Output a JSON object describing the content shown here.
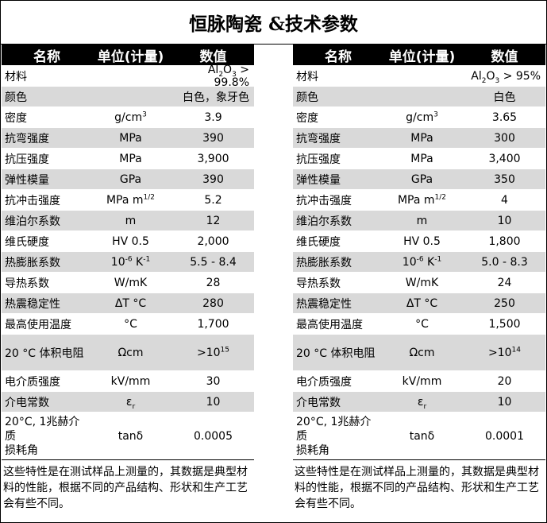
{
  "title": "恒脉陶瓷 &技术参数",
  "headers": {
    "name": "名称",
    "unit": "单位(计量)",
    "value": "数值"
  },
  "left": {
    "rows": [
      {
        "name": "材料",
        "unit": "",
        "value_pre": "Al",
        "value_sub": "2",
        "value_mid": "O",
        "value_sub2": "3",
        "value_post": " > 99.8%"
      },
      {
        "name": "颜色",
        "unit": "",
        "value": "白色，象牙色"
      },
      {
        "name": "密度",
        "unit": "g/cm",
        "unit_sup": "3",
        "value": "3.9"
      },
      {
        "name": "抗弯强度",
        "unit": "MPa",
        "value": "390"
      },
      {
        "name": "抗压强度",
        "unit": "MPa",
        "value": "3,900"
      },
      {
        "name": "弹性模量",
        "unit": "GPa",
        "value": "390"
      },
      {
        "name": "抗冲击强度",
        "unit": "MPa m",
        "unit_sup": "1/2",
        "value": "5.2"
      },
      {
        "name": "维泊尔系数",
        "unit": "m",
        "value": "12"
      },
      {
        "name": "维氏硬度",
        "unit": "HV 0.5",
        "value": "2,000"
      },
      {
        "name": "热膨胀系数",
        "unit_a": "10",
        "unit_a_sup": "-6",
        "unit_b": " K",
        "unit_b_sup": "-1",
        "value": "5.5 - 8.4"
      },
      {
        "name": "导热系数",
        "unit": "W/mK",
        "value": "28"
      },
      {
        "name": "热震稳定性",
        "unit": "ΔT °C",
        "value": "280"
      },
      {
        "name": "最高使用温度",
        "unit": "°C",
        "value": "1,700"
      },
      {
        "name": "20 °C 体积电阻",
        "unit": "Ωcm",
        "value": ">10",
        "value_sup": "15"
      },
      {
        "name": "电介质强度",
        "unit": "kV/mm",
        "value": "30"
      },
      {
        "name": "介电常数",
        "unit": "ε",
        "unit_sub": "r",
        "value": "10"
      },
      {
        "name_line1": "20°C, 1兆赫介质",
        "name_line2": "损耗角",
        "unit": "tanδ",
        "value": "0.0005"
      }
    ],
    "note": "这些特性是在测试样品上测量的，其数据是典型材料的性能，根据不同的产品结构、形状和生产工艺会有些不同。"
  },
  "right": {
    "rows": [
      {
        "name": "材料",
        "unit": "",
        "value_pre": "Al",
        "value_sub": "2",
        "value_mid": "O",
        "value_sub2": "3",
        "value_post": " > 95%"
      },
      {
        "name": "颜色",
        "unit": "",
        "value": "白色"
      },
      {
        "name": "密度",
        "unit": "g/cm",
        "unit_sup": "3",
        "value": "3.65"
      },
      {
        "name": "抗弯强度",
        "unit": "MPa",
        "value": "300"
      },
      {
        "name": "抗压强度",
        "unit": "MPa",
        "value": "3,400"
      },
      {
        "name": "弹性模量",
        "unit": "GPa",
        "value": "350"
      },
      {
        "name": "抗冲击强度",
        "unit": "MPa m",
        "unit_sup": "1/2",
        "value": "4"
      },
      {
        "name": "维泊尔系数",
        "unit": "m",
        "value": "10"
      },
      {
        "name": "维氏硬度",
        "unit": "HV 0.5",
        "value": "1,800"
      },
      {
        "name": "热膨胀系数",
        "unit_a": "10",
        "unit_a_sup": "-6",
        "unit_b": " K",
        "unit_b_sup": "-1",
        "value": "5.0 - 8.3"
      },
      {
        "name": "导热系数",
        "unit": "W/mK",
        "value": "24"
      },
      {
        "name": "热震稳定性",
        "unit": "ΔT °C",
        "value": "250"
      },
      {
        "name": "最高使用温度",
        "unit": "°C",
        "value": "1,500"
      },
      {
        "name": "20 °C 体积电阻",
        "unit": "Ωcm",
        "value": ">10",
        "value_sup": "14"
      },
      {
        "name": "电介质强度",
        "unit": "kV/mm",
        "value": "20"
      },
      {
        "name": "介电常数",
        "unit": "ε",
        "unit_sub": "r",
        "value": "10"
      },
      {
        "name_line1": "20°C, 1兆赫介质",
        "name_line2": "损耗角",
        "unit": "tanδ",
        "value": "0.0001"
      }
    ],
    "note": "这些特性是在测试样品上测量的，其数据是典型材料的性能，根据不同的产品结构、形状和生产工艺会有些不同。"
  }
}
